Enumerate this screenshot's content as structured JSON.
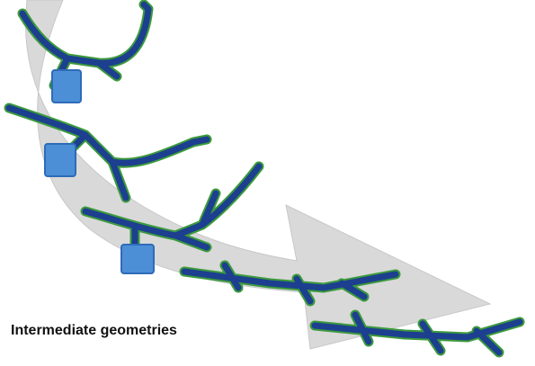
{
  "figure": {
    "label": "Intermediate geometries"
  }
}
